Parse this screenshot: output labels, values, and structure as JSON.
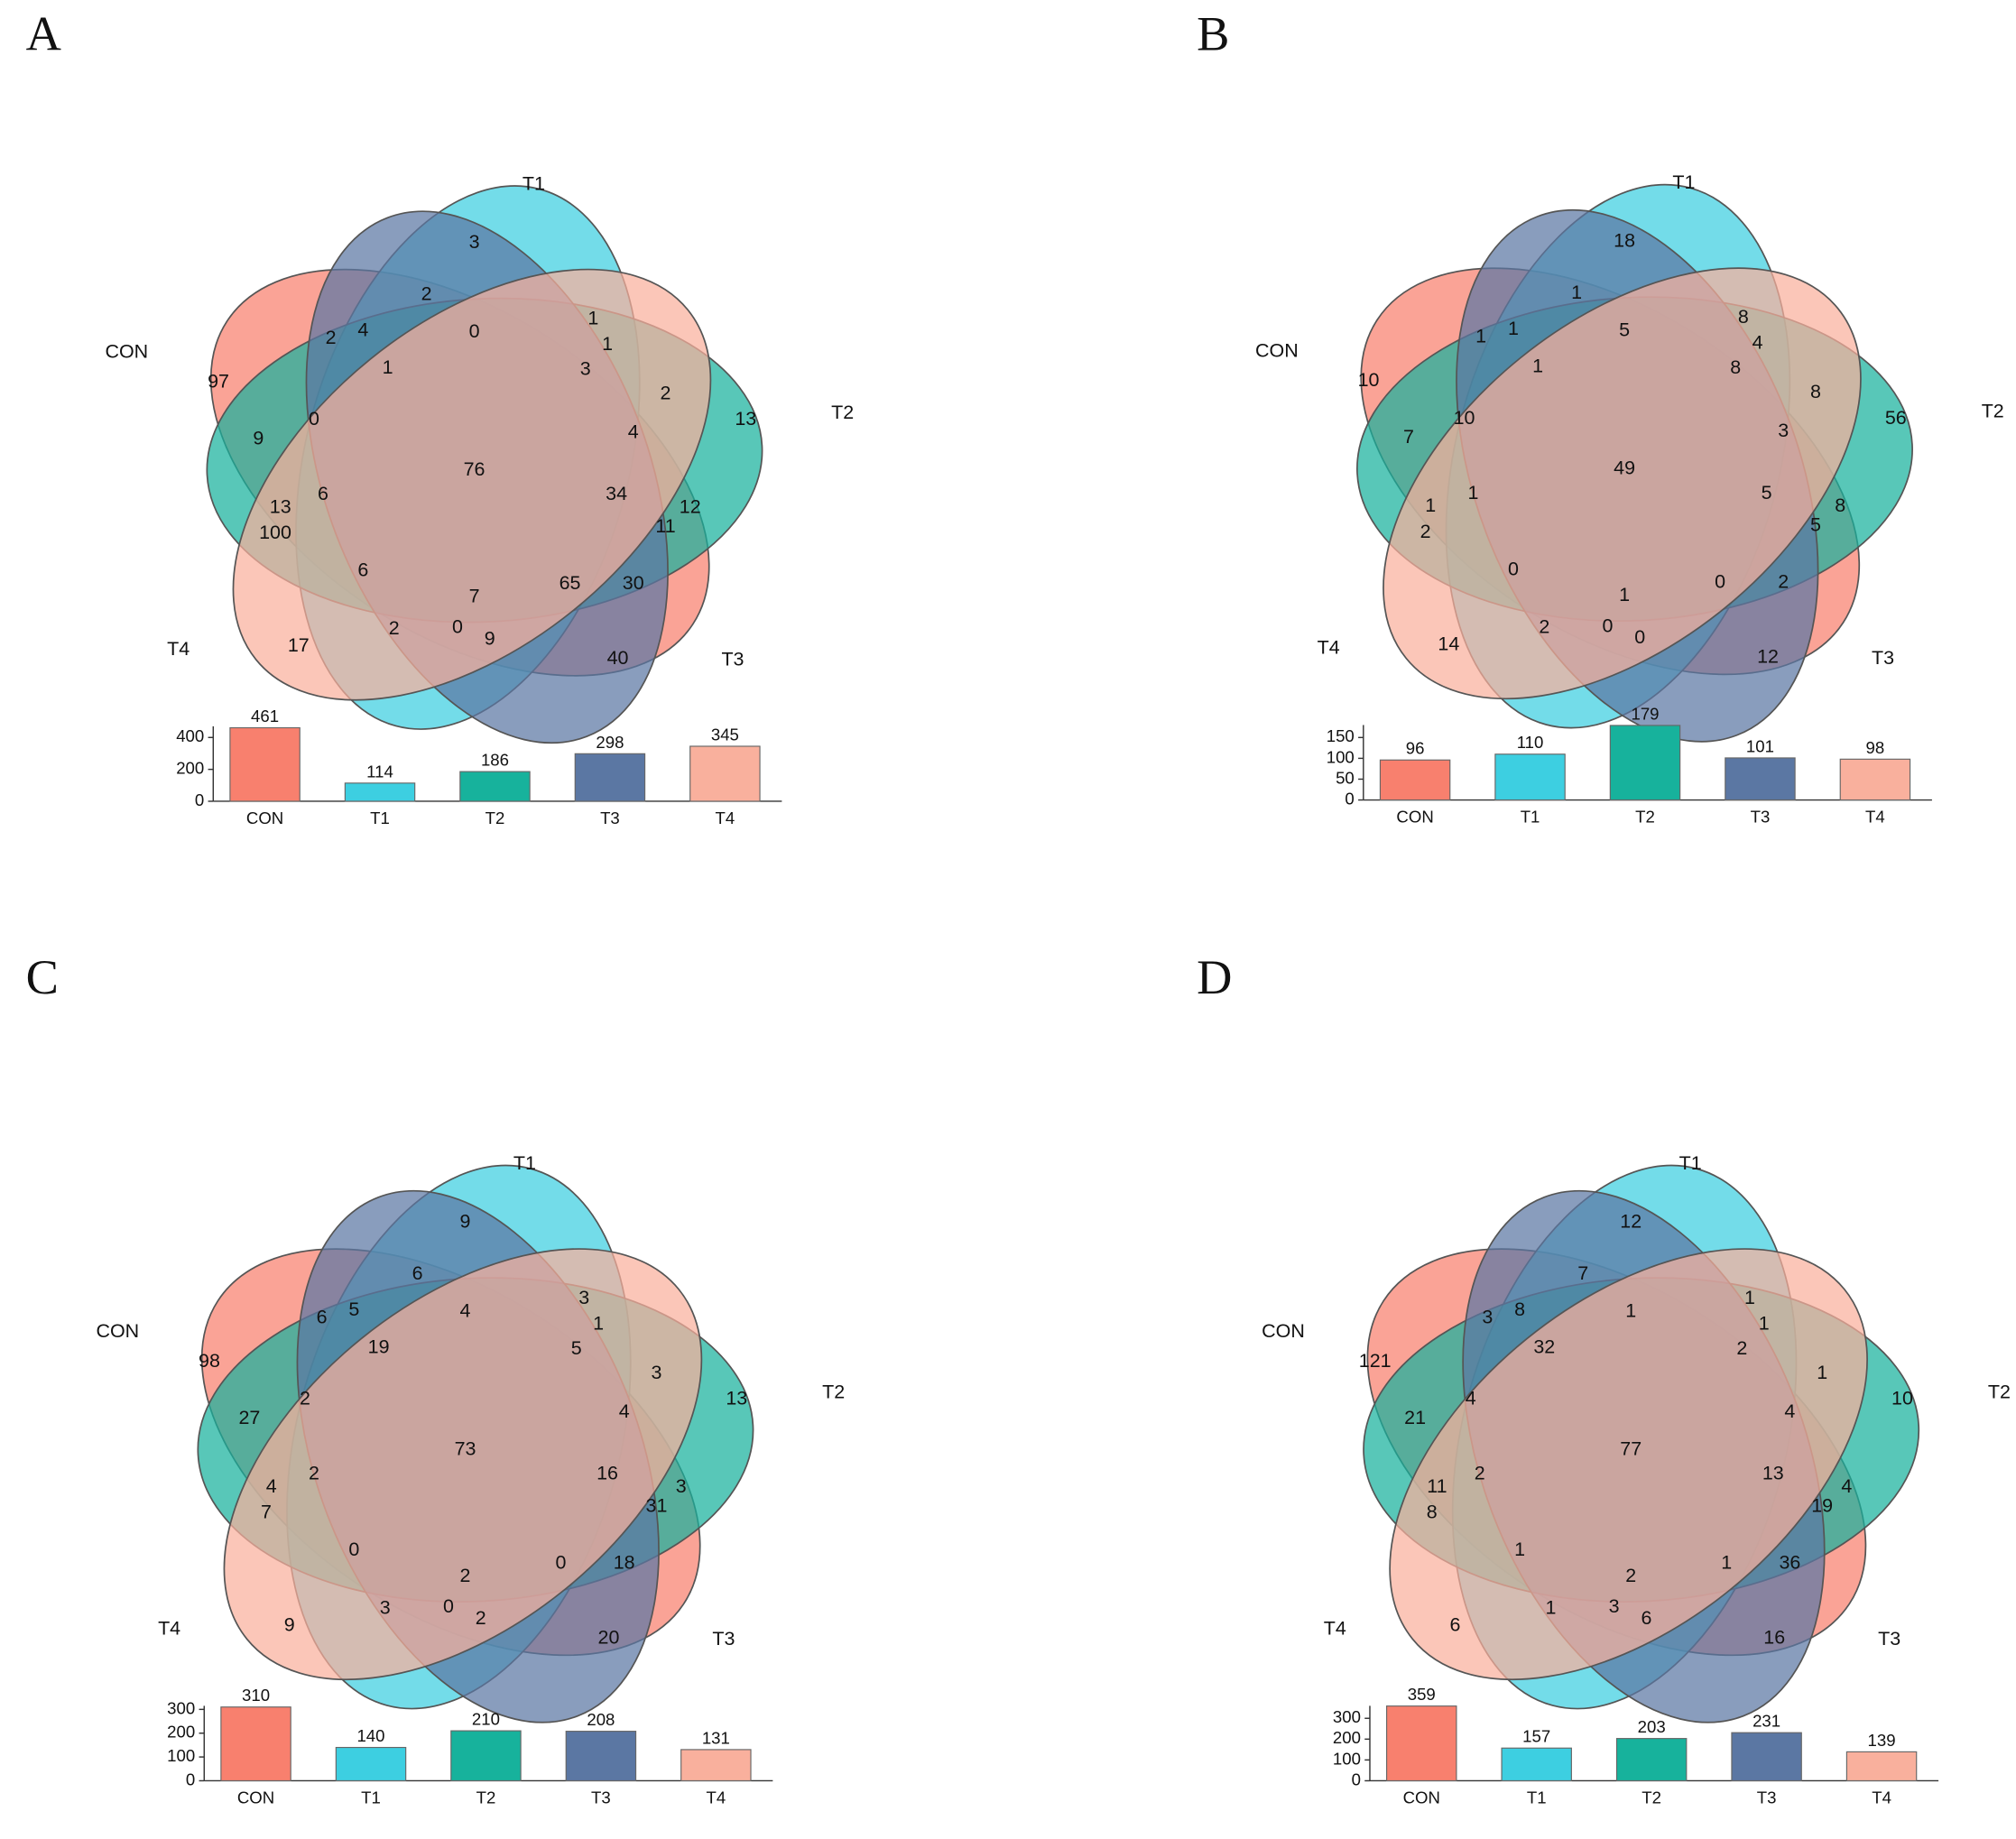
{
  "chart_data": [
    {
      "type": "venn",
      "panel": "A",
      "sets": [
        "CON",
        "T1",
        "T2",
        "T3",
        "T4"
      ],
      "colors": [
        "#f8806e",
        "#3dcfe1",
        "#17b29c",
        "#5b77a3",
        "#f9b09d"
      ],
      "values": [
        3,
        2,
        1,
        2,
        4,
        0,
        1,
        97,
        1,
        3,
        2,
        13,
        9,
        0,
        4,
        76,
        6,
        34,
        13,
        12,
        100,
        11,
        6,
        65,
        30,
        7,
        17,
        2,
        0,
        9,
        40
      ],
      "bar": {
        "type": "bar",
        "categories": [
          "CON",
          "T1",
          "T2",
          "T3",
          "T4"
        ],
        "values": [
          461,
          114,
          186,
          298,
          345
        ],
        "colors": [
          "#f8806e",
          "#3dcfe1",
          "#17b29c",
          "#5b77a3",
          "#f9b09d"
        ],
        "ylim": [
          0,
          470
        ],
        "yticks": [
          0,
          200,
          400
        ]
      }
    },
    {
      "type": "venn",
      "panel": "B",
      "sets": [
        "CON",
        "T1",
        "T2",
        "T3",
        "T4"
      ],
      "colors": [
        "#f8806e",
        "#3dcfe1",
        "#17b29c",
        "#5b77a3",
        "#f9b09d"
      ],
      "values": [
        18,
        1,
        8,
        1,
        1,
        5,
        4,
        10,
        1,
        8,
        8,
        56,
        7,
        10,
        3,
        49,
        1,
        5,
        1,
        8,
        2,
        5,
        0,
        0,
        2,
        1,
        14,
        2,
        0,
        0,
        12
      ],
      "bar": {
        "type": "bar",
        "categories": [
          "CON",
          "T1",
          "T2",
          "T3",
          "T4"
        ],
        "values": [
          96,
          110,
          179,
          101,
          98
        ],
        "colors": [
          "#f8806e",
          "#3dcfe1",
          "#17b29c",
          "#5b77a3",
          "#f9b09d"
        ],
        "ylim": [
          0,
          180
        ],
        "yticks": [
          0,
          50,
          100,
          150
        ]
      }
    },
    {
      "type": "venn",
      "panel": "C",
      "sets": [
        "CON",
        "T1",
        "T2",
        "T3",
        "T4"
      ],
      "colors": [
        "#f8806e",
        "#3dcfe1",
        "#17b29c",
        "#5b77a3",
        "#f9b09d"
      ],
      "values": [
        9,
        6,
        3,
        6,
        5,
        4,
        1,
        98,
        19,
        5,
        3,
        13,
        27,
        2,
        4,
        73,
        2,
        16,
        4,
        3,
        7,
        31,
        0,
        0,
        18,
        2,
        9,
        3,
        0,
        2,
        20
      ],
      "bar": {
        "type": "bar",
        "categories": [
          "CON",
          "T1",
          "T2",
          "T3",
          "T4"
        ],
        "values": [
          310,
          140,
          210,
          208,
          131
        ],
        "colors": [
          "#f8806e",
          "#3dcfe1",
          "#17b29c",
          "#5b77a3",
          "#f9b09d"
        ],
        "ylim": [
          0,
          315
        ],
        "yticks": [
          0,
          100,
          200,
          300
        ]
      }
    },
    {
      "type": "venn",
      "panel": "D",
      "sets": [
        "CON",
        "T1",
        "T2",
        "T3",
        "T4"
      ],
      "colors": [
        "#f8806e",
        "#3dcfe1",
        "#17b29c",
        "#5b77a3",
        "#f9b09d"
      ],
      "values": [
        12,
        7,
        1,
        3,
        8,
        1,
        1,
        121,
        32,
        2,
        1,
        10,
        21,
        4,
        4,
        77,
        2,
        13,
        11,
        4,
        8,
        19,
        1,
        1,
        36,
        2,
        6,
        1,
        3,
        6,
        16
      ],
      "bar": {
        "type": "bar",
        "categories": [
          "CON",
          "T1",
          "T2",
          "T3",
          "T4"
        ],
        "values": [
          359,
          157,
          203,
          231,
          139
        ],
        "colors": [
          "#f8806e",
          "#3dcfe1",
          "#17b29c",
          "#5b77a3",
          "#f9b09d"
        ],
        "ylim": [
          0,
          360
        ],
        "yticks": [
          0,
          100,
          200,
          300
        ]
      }
    }
  ]
}
